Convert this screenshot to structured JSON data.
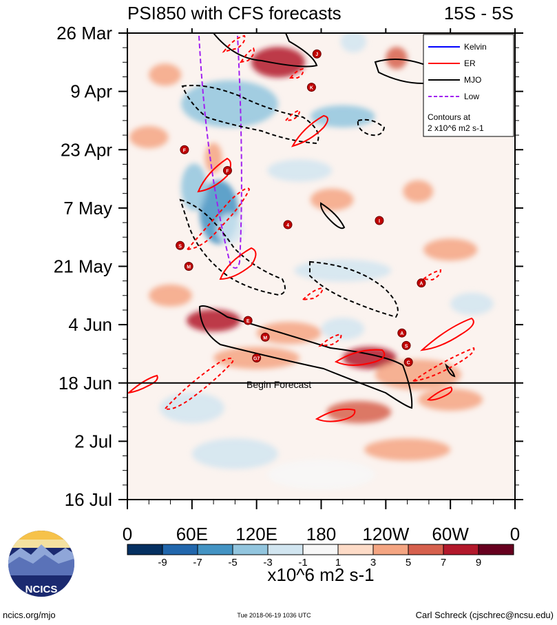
{
  "chart_data": {
    "type": "heatmap",
    "title": "PSI850 with CFS forecasts",
    "lat_band": "15S - 5S",
    "x_ticks": [
      "0",
      "60E",
      "120E",
      "180",
      "120W",
      "60W",
      "0"
    ],
    "x_range_deg": [
      0,
      360
    ],
    "y_ticks": [
      "26 Mar",
      "9 Apr",
      "23 Apr",
      "7 May",
      "21 May",
      "4 Jun",
      "18 Jun",
      "2 Jul",
      "16 Jul"
    ],
    "y_range_days": [
      0,
      112
    ],
    "forecast_start_day": 84,
    "forecast_label": "Begin Forecast",
    "colorbar": {
      "levels": [
        "-9",
        "-7",
        "-5",
        "-3",
        "-1",
        "1",
        "3",
        "5",
        "7",
        "9"
      ],
      "colors": [
        "#053061",
        "#2166ac",
        "#4393c3",
        "#92c5de",
        "#d1e5f0",
        "#f7f7f7",
        "#fddbc7",
        "#f4a582",
        "#d6604d",
        "#b2182b",
        "#67001f"
      ],
      "units": "x10^6 m2 s-1"
    },
    "legend": [
      {
        "label": "Kelvin",
        "color": "#0000ff",
        "style": "solid"
      },
      {
        "label": "ER",
        "color": "#ff0000",
        "style": "solid"
      },
      {
        "label": "MJO",
        "color": "#000000",
        "style": "solid"
      },
      {
        "label": "Low",
        "color": "#a020f0",
        "style": "dashed"
      }
    ],
    "contour_note_line1": "Contours at",
    "contour_note_line2": "2 x10^6 m2 s-1",
    "anomaly_blobs": [
      {
        "lon": 140,
        "day": 7,
        "rx": 25,
        "ry": 3,
        "v": 8
      },
      {
        "lon": 250,
        "day": 6,
        "rx": 10,
        "ry": 2,
        "v": 5
      },
      {
        "lon": 210,
        "day": 2,
        "rx": 12,
        "ry": 2,
        "v": -3
      },
      {
        "lon": 95,
        "day": 17,
        "rx": 45,
        "ry": 5,
        "v": -4
      },
      {
        "lon": 200,
        "day": 20,
        "rx": 30,
        "ry": 2,
        "v": -4
      },
      {
        "lon": 35,
        "day": 10,
        "rx": 15,
        "ry": 2,
        "v": 4
      },
      {
        "lon": 20,
        "day": 25,
        "rx": 18,
        "ry": 2,
        "v": 4
      },
      {
        "lon": 85,
        "day": 43,
        "rx": 18,
        "ry": 7,
        "v": -7
      },
      {
        "lon": 62,
        "day": 37,
        "rx": 12,
        "ry": 5,
        "v": -4
      },
      {
        "lon": 95,
        "day": 47,
        "rx": 12,
        "ry": 3,
        "v": -3
      },
      {
        "lon": 190,
        "day": 40,
        "rx": 20,
        "ry": 2,
        "v": 4
      },
      {
        "lon": 270,
        "day": 38,
        "rx": 14,
        "ry": 2,
        "v": 3
      },
      {
        "lon": 80,
        "day": 30,
        "rx": 8,
        "ry": 3,
        "v": 3
      },
      {
        "lon": 200,
        "day": 57,
        "rx": 45,
        "ry": 2,
        "v": -3
      },
      {
        "lon": 300,
        "day": 52,
        "rx": 25,
        "ry": 2,
        "v": 3
      },
      {
        "lon": 80,
        "day": 69,
        "rx": 25,
        "ry": 2,
        "v": 7
      },
      {
        "lon": 150,
        "day": 72,
        "rx": 30,
        "ry": 2,
        "v": 3
      },
      {
        "lon": 200,
        "day": 71,
        "rx": 20,
        "ry": 2,
        "v": -3
      },
      {
        "lon": 225,
        "day": 78,
        "rx": 25,
        "ry": 2,
        "v": 8
      },
      {
        "lon": 120,
        "day": 78,
        "rx": 40,
        "ry": 2,
        "v": 4
      },
      {
        "lon": 270,
        "day": 82,
        "rx": 40,
        "ry": 3,
        "v": 4
      },
      {
        "lon": 60,
        "day": 90,
        "rx": 30,
        "ry": 3,
        "v": -2
      },
      {
        "lon": 215,
        "day": 91,
        "rx": 30,
        "ry": 2,
        "v": 6
      },
      {
        "lon": 300,
        "day": 88,
        "rx": 30,
        "ry": 2,
        "v": 3
      },
      {
        "lon": 100,
        "day": 101,
        "rx": 40,
        "ry": 3,
        "v": -2
      },
      {
        "lon": 260,
        "day": 100,
        "rx": 40,
        "ry": 2,
        "v": 3
      },
      {
        "lon": 180,
        "day": 106,
        "rx": 50,
        "ry": 3,
        "v": -1
      },
      {
        "lon": 40,
        "day": 63,
        "rx": 20,
        "ry": 2,
        "v": 3
      },
      {
        "lon": 320,
        "day": 65,
        "rx": 20,
        "ry": 2,
        "v": -3
      },
      {
        "lon": 160,
        "day": 33,
        "rx": 30,
        "ry": 2,
        "v": -2
      }
    ],
    "storm_markers": [
      {
        "letter": "J",
        "lon": 176,
        "day": 5
      },
      {
        "letter": "K",
        "lon": 171,
        "day": 13
      },
      {
        "letter": "F",
        "lon": 53,
        "day": 28
      },
      {
        "letter": "F",
        "lon": 93,
        "day": 33
      },
      {
        "letter": "4",
        "lon": 149,
        "day": 46
      },
      {
        "letter": "I",
        "lon": 234,
        "day": 45
      },
      {
        "letter": "S",
        "lon": 49,
        "day": 51
      },
      {
        "letter": "M",
        "lon": 57,
        "day": 56
      },
      {
        "letter": "A",
        "lon": 273,
        "day": 60
      },
      {
        "letter": "E",
        "lon": 112,
        "day": 69
      },
      {
        "letter": "M",
        "lon": 128,
        "day": 73
      },
      {
        "letter": "A",
        "lon": 255,
        "day": 72
      },
      {
        "letter": "S",
        "lon": 259,
        "day": 75
      },
      {
        "letter": "G7",
        "lon": 120,
        "day": 78
      },
      {
        "letter": "C",
        "lon": 261,
        "day": 79
      }
    ]
  },
  "footer": {
    "logo_text": "NCICS",
    "left": "ncics.org/mjo",
    "center": "Tue 2018-06-19 1036 UTC",
    "right": "Carl Schreck (cjschrec@ncsu.edu)"
  }
}
